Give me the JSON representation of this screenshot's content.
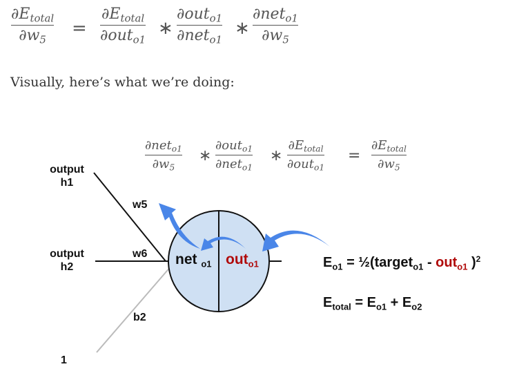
{
  "equation_top": {
    "lhs": {
      "num_base": "∂E",
      "num_sub": "total",
      "den_base": "∂w",
      "den_sub": "5"
    },
    "equals": "=",
    "t1": {
      "num_base": "∂E",
      "num_sub": "total",
      "den_base": "∂out",
      "den_sub": "o1"
    },
    "times1": "∗",
    "t2": {
      "num_base": "∂out",
      "num_sub": "o1",
      "den_base": "∂net",
      "den_sub": "o1"
    },
    "times2": "∗",
    "t3": {
      "num_base": "∂net",
      "num_sub": "o1",
      "den_base": "∂w",
      "den_sub": "5"
    }
  },
  "caption": "Visually, here’s what we’re doing:",
  "equation_mid": {
    "t1": {
      "num_base": "∂net",
      "num_sub": "o1",
      "den_base": "∂w",
      "den_sub": "5"
    },
    "times1": "∗",
    "t2": {
      "num_base": "∂out",
      "num_sub": "o1",
      "den_base": "∂net",
      "den_sub": "o1"
    },
    "times2": "∗",
    "t3": {
      "num_base": "∂E",
      "num_sub": "total",
      "den_base": "∂out",
      "den_sub": "o1"
    },
    "equals": "=",
    "rhs": {
      "num_base": "∂E",
      "num_sub": "total",
      "den_base": "∂w",
      "den_sub": "5"
    }
  },
  "diagram": {
    "input_h1": {
      "line1": "output",
      "line2": "h1"
    },
    "input_h2": {
      "line1": "output",
      "line2": "h2"
    },
    "input_bias": "1",
    "weight_w5": "w5",
    "weight_w6": "w6",
    "weight_b2": "b2",
    "node_net": {
      "base": "net ",
      "sub": "o1"
    },
    "node_out": {
      "base": "out",
      "sub": "o1"
    },
    "colors": {
      "node_fill": "#cfe0f3",
      "arrow": "#4a86e8",
      "out_text": "#b00a0a"
    }
  },
  "error_o1": {
    "E": "E",
    "E_sub": "o1",
    "eq": " = ½(target",
    "target_sub": "o1",
    "minus": " - ",
    "out": "out",
    "out_sub": "o1",
    "close": " )",
    "power": "2"
  },
  "error_total": {
    "E": "E",
    "E_sub": "total",
    "eq": " = E",
    "sub1": "o1",
    "plus": " + E",
    "sub2": "o2"
  }
}
